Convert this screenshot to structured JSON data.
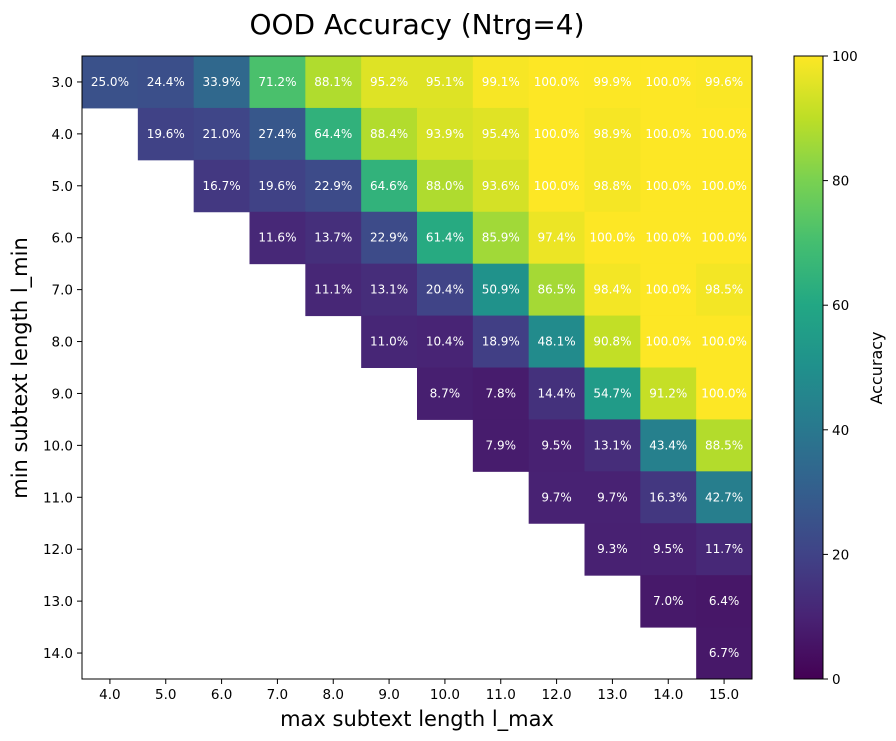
{
  "chart_data": {
    "type": "heatmap",
    "title": "OOD Accuracy (Ntrg=4)",
    "xlabel": "max subtext length l_max",
    "ylabel": "min subtext length l_min",
    "x_categories": [
      "4.0",
      "5.0",
      "6.0",
      "7.0",
      "8.0",
      "9.0",
      "10.0",
      "11.0",
      "12.0",
      "13.0",
      "14.0",
      "15.0"
    ],
    "y_categories": [
      "3.0",
      "4.0",
      "5.0",
      "6.0",
      "7.0",
      "8.0",
      "9.0",
      "10.0",
      "11.0",
      "12.0",
      "13.0",
      "14.0"
    ],
    "values": [
      [
        25.0,
        24.4,
        33.9,
        71.2,
        88.1,
        95.2,
        95.1,
        99.1,
        100.0,
        99.9,
        100.0,
        99.6
      ],
      [
        null,
        19.6,
        21.0,
        27.4,
        64.4,
        88.4,
        93.9,
        95.4,
        100.0,
        98.9,
        100.0,
        100.0
      ],
      [
        null,
        null,
        16.7,
        19.6,
        22.9,
        64.6,
        88.0,
        93.6,
        100.0,
        98.8,
        100.0,
        100.0
      ],
      [
        null,
        null,
        null,
        11.6,
        13.7,
        22.9,
        61.4,
        85.9,
        97.4,
        100.0,
        100.0,
        100.0
      ],
      [
        null,
        null,
        null,
        null,
        11.1,
        13.1,
        20.4,
        50.9,
        86.5,
        98.4,
        100.0,
        98.5
      ],
      [
        null,
        null,
        null,
        null,
        null,
        11.0,
        10.4,
        18.9,
        48.1,
        90.8,
        100.0,
        100.0
      ],
      [
        null,
        null,
        null,
        null,
        null,
        null,
        8.7,
        7.8,
        14.4,
        54.7,
        91.2,
        100.0
      ],
      [
        null,
        null,
        null,
        null,
        null,
        null,
        null,
        7.9,
        9.5,
        13.1,
        43.4,
        88.5
      ],
      [
        null,
        null,
        null,
        null,
        null,
        null,
        null,
        null,
        9.7,
        9.7,
        16.3,
        42.7
      ],
      [
        null,
        null,
        null,
        null,
        null,
        null,
        null,
        null,
        null,
        9.3,
        9.5,
        11.7
      ],
      [
        null,
        null,
        null,
        null,
        null,
        null,
        null,
        null,
        null,
        null,
        7.0,
        6.4
      ],
      [
        null,
        null,
        null,
        null,
        null,
        null,
        null,
        null,
        null,
        null,
        null,
        6.7
      ]
    ],
    "cell_labels": [
      [
        "25.0%",
        "24.4%",
        "33.9%",
        "71.2%",
        "88.1%",
        "95.2%",
        "95.1%",
        "99.1%",
        "100.0%",
        "99.9%",
        "100.0%",
        "99.6%"
      ],
      [
        null,
        "19.6%",
        "21.0%",
        "27.4%",
        "64.4%",
        "88.4%",
        "93.9%",
        "95.4%",
        "100.0%",
        "98.9%",
        "100.0%",
        "100.0%"
      ],
      [
        null,
        null,
        "16.7%",
        "19.6%",
        "22.9%",
        "64.6%",
        "88.0%",
        "93.6%",
        "100.0%",
        "98.8%",
        "100.0%",
        "100.0%"
      ],
      [
        null,
        null,
        null,
        "11.6%",
        "13.7%",
        "22.9%",
        "61.4%",
        "85.9%",
        "97.4%",
        "100.0%",
        "100.0%",
        "100.0%"
      ],
      [
        null,
        null,
        null,
        null,
        "11.1%",
        "13.1%",
        "20.4%",
        "50.9%",
        "86.5%",
        "98.4%",
        "100.0%",
        "98.5%"
      ],
      [
        null,
        null,
        null,
        null,
        null,
        "11.0%",
        "10.4%",
        "18.9%",
        "48.1%",
        "90.8%",
        "100.0%",
        "100.0%"
      ],
      [
        null,
        null,
        null,
        null,
        null,
        null,
        "8.7%",
        "7.8%",
        "14.4%",
        "54.7%",
        "91.2%",
        "100.0%"
      ],
      [
        null,
        null,
        null,
        null,
        null,
        null,
        null,
        "7.9%",
        "9.5%",
        "13.1%",
        "43.4%",
        "88.5%"
      ],
      [
        null,
        null,
        null,
        null,
        null,
        null,
        null,
        null,
        "9.7%",
        "9.7%",
        "16.3%",
        "42.7%"
      ],
      [
        null,
        null,
        null,
        null,
        null,
        null,
        null,
        null,
        null,
        "9.3%",
        "9.5%",
        "11.7%"
      ],
      [
        null,
        null,
        null,
        null,
        null,
        null,
        null,
        null,
        null,
        null,
        "7.0%",
        "6.4%"
      ],
      [
        null,
        null,
        null,
        null,
        null,
        null,
        null,
        null,
        null,
        null,
        null,
        "6.7%"
      ]
    ],
    "colorbar": {
      "label": "Accuracy",
      "range": [
        0,
        100
      ],
      "ticks": [
        0,
        20,
        40,
        60,
        80,
        100
      ],
      "tick_labels": [
        "0",
        "20",
        "40",
        "60",
        "80",
        "100"
      ],
      "colormap": "viridis"
    },
    "cell_label_color": "#ffffff"
  }
}
